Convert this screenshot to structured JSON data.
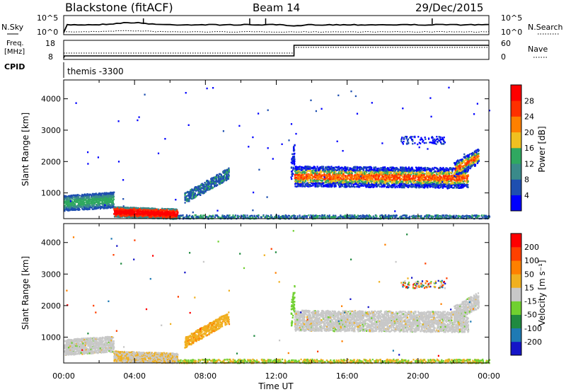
{
  "header": {
    "station": "Blackstone (fitACF)",
    "beam": "Beam 14",
    "date": "29/Dec/2015"
  },
  "panels": {
    "nsky": {
      "label": "N.Sky",
      "ticks": [
        "10^5",
        "10^0"
      ]
    },
    "nsearch": {
      "label": "N.Search",
      "ticks": [
        "10^5",
        "10^0"
      ]
    },
    "freq": {
      "label": "Freq.",
      "unit": "[MHz]",
      "ticks": [
        "18",
        "8"
      ]
    },
    "nave": {
      "label": "Nave",
      "ticks": [
        "60",
        "0"
      ]
    },
    "cpid": {
      "label": "CPID",
      "value": "themis -3300"
    }
  },
  "chart_data": [
    {
      "type": "heatmap",
      "name": "power",
      "ylabel": "Slant Range [km]",
      "xlabel": "",
      "yticks": [
        "1000",
        "2000",
        "3000",
        "4000"
      ],
      "colorbar": {
        "label": "Power [dB]",
        "ticks": [
          "4",
          "8",
          "12",
          "16",
          "20",
          "24",
          "28"
        ],
        "colors": [
          "#0000ff",
          "#1e4fb0",
          "#3a8a8a",
          "#2fa860",
          "#f0c020",
          "#ff8000",
          "#ff3000",
          "#ff0000"
        ]
      },
      "ylim": [
        180,
        4600
      ]
    },
    {
      "type": "heatmap",
      "name": "velocity",
      "ylabel": "Slant Range [km]",
      "xlabel": "Time UT",
      "xticks": [
        "00:00",
        "04:00",
        "08:00",
        "12:00",
        "16:00",
        "20:00",
        "00:00"
      ],
      "yticks": [
        "1000",
        "2000",
        "3000",
        "4000"
      ],
      "colorbar": {
        "label": "Velocity [m s⁻¹]",
        "ticks": [
          "200",
          "100",
          "50",
          "15",
          "-15",
          "-50",
          "-100",
          "-200"
        ],
        "colors": [
          "#1515c8",
          "#1e7ab4",
          "#208a40",
          "#70d030",
          "#c8c8c8",
          "#f0b020",
          "#ff8000",
          "#ff4000",
          "#ff0000"
        ]
      },
      "ylim": [
        180,
        4600
      ]
    }
  ]
}
